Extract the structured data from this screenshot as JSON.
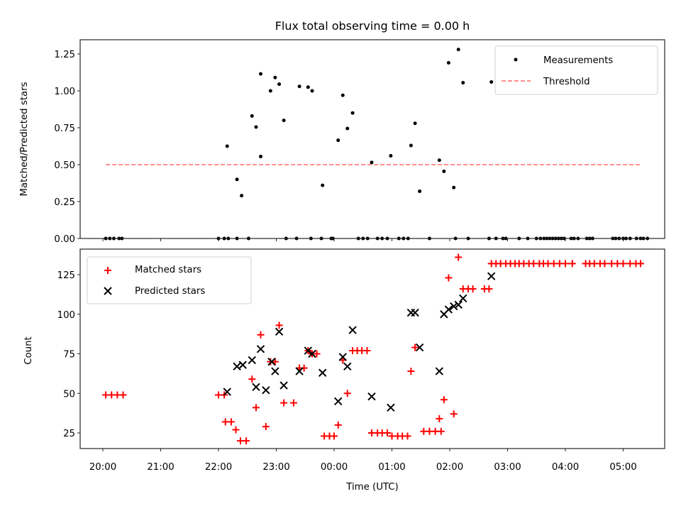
{
  "chart_data": [
    {
      "type": "scatter",
      "panel": "top",
      "title": "Flux total observing time = 0.00 h",
      "xlabel": "",
      "ylabel": "Matched/Predicted stars",
      "ylim": [
        0,
        1.35
      ],
      "yticks": [
        0,
        0.25,
        0.5,
        0.75,
        1.0,
        1.25
      ],
      "ytick_labels": [
        "0.00",
        "0.25",
        "0.50",
        "0.75",
        "1.00",
        "1.25"
      ],
      "xlim_hours_from_2000": [
        -0.4,
        9.7
      ],
      "xticks_hours_from_2000": [
        0,
        1,
        2,
        3,
        4,
        5,
        6,
        7,
        8,
        9
      ],
      "legend": {
        "placement": "upper-right",
        "entries": [
          "Measurements",
          "Threshold"
        ]
      },
      "series": [
        {
          "name": "Measurements",
          "marker": "dot",
          "color": "#000000",
          "x_hours_from_2000": [
            0.05,
            0.12,
            0.19,
            0.28,
            0.33,
            2.0,
            2.1,
            2.17,
            2.32,
            2.52,
            3.17,
            3.35,
            3.6,
            3.78,
            3.95,
            3.98,
            4.42,
            4.5,
            4.58,
            4.75,
            4.83,
            4.92,
            5.12,
            5.2,
            5.28,
            5.65,
            6.1,
            6.32,
            6.68,
            6.8,
            6.92,
            6.97,
            7.2,
            7.35,
            7.5,
            7.57,
            7.63,
            7.68,
            7.73,
            7.78,
            7.83,
            7.88,
            7.93,
            7.98,
            8.1,
            8.15,
            8.22,
            8.37,
            8.42,
            8.47,
            8.82,
            8.87,
            8.93,
            9.0,
            9.05,
            9.12,
            9.23,
            9.3,
            9.35,
            9.42,
            2.15,
            2.32,
            2.4,
            2.58,
            2.65,
            2.73,
            2.73,
            2.9,
            2.98,
            3.05,
            3.13,
            3.4,
            3.55,
            3.62,
            3.8,
            4.07,
            4.15,
            4.23,
            4.32,
            4.65,
            4.98,
            5.33,
            5.4,
            5.48,
            5.82,
            5.9,
            5.98,
            6.07,
            6.15,
            6.23,
            6.72
          ],
          "y": [
            0,
            0,
            0,
            0,
            0,
            0,
            0,
            0,
            0,
            0,
            0,
            0,
            0,
            0,
            0,
            0,
            0,
            0,
            0,
            0,
            0,
            0,
            0,
            0,
            0,
            0,
            0,
            0,
            0,
            0,
            0,
            0,
            0,
            0,
            0,
            0,
            0,
            0,
            0,
            0,
            0,
            0,
            0,
            0,
            0,
            0,
            0,
            0,
            0,
            0,
            0,
            0,
            0,
            0,
            0,
            0,
            0,
            0,
            0,
            0,
            0.625,
            0.4,
            0.29,
            0.83,
            0.755,
            0.555,
            1.115,
            1.0,
            1.09,
            1.045,
            0.8,
            1.03,
            1.025,
            1.0,
            0.36,
            0.665,
            0.97,
            0.745,
            0.85,
            0.515,
            0.56,
            0.63,
            0.78,
            0.32,
            0.53,
            0.455,
            1.19,
            0.345,
            1.28,
            1.055,
            1.06
          ]
        },
        {
          "name": "Threshold",
          "style": "dashed",
          "color": "#ff8080",
          "x_hours_from_2000": [
            0.05,
            9.3
          ],
          "y": [
            0.5,
            0.5
          ]
        }
      ]
    },
    {
      "type": "scatter",
      "panel": "bottom",
      "xlabel": "Time (UTC)",
      "ylabel": "Count",
      "ylim": [
        15,
        140
      ],
      "yticks": [
        25,
        50,
        75,
        100,
        125
      ],
      "ytick_labels": [
        "25",
        "50",
        "75",
        "100",
        "125"
      ],
      "xlim_hours_from_2000": [
        -0.4,
        9.7
      ],
      "xticks_hours_from_2000": [
        0,
        1,
        2,
        3,
        4,
        5,
        6,
        7,
        8,
        9
      ],
      "xtick_labels": [
        "20:00",
        "21:00",
        "22:00",
        "23:00",
        "00:00",
        "01:00",
        "02:00",
        "03:00",
        "04:00",
        "05:00"
      ],
      "legend": {
        "placement": "upper-left",
        "entries": [
          "Matched stars",
          "Predicted stars"
        ]
      },
      "series": [
        {
          "name": "Matched stars",
          "marker": "+",
          "color": "#ff0000",
          "x_hours_from_2000": [
            0.05,
            0.15,
            0.25,
            0.35,
            2.0,
            2.1,
            2.12,
            2.22,
            2.3,
            2.38,
            2.48,
            2.58,
            2.65,
            2.73,
            2.82,
            2.9,
            2.98,
            3.05,
            3.13,
            3.3,
            3.4,
            3.48,
            3.55,
            3.62,
            3.7,
            3.83,
            3.92,
            4.0,
            4.07,
            4.15,
            4.23,
            4.32,
            4.4,
            4.48,
            4.57,
            4.65,
            4.75,
            4.83,
            4.92,
            5.0,
            5.1,
            5.18,
            5.27,
            5.33,
            5.4,
            5.55,
            5.65,
            5.75,
            5.85,
            5.82,
            5.9,
            5.98,
            6.07,
            6.15,
            6.23,
            6.32,
            6.4,
            6.6,
            6.68,
            6.72,
            6.8,
            6.88,
            6.97,
            7.05,
            7.13,
            7.2,
            7.28,
            7.37,
            7.45,
            7.55,
            7.62,
            7.7,
            7.8,
            7.9,
            8.0,
            8.12,
            8.35,
            8.42,
            8.5,
            8.6,
            8.68,
            8.8,
            8.9,
            9.0,
            9.12,
            9.22,
            9.3
          ],
          "y": [
            49,
            49,
            49,
            49,
            49,
            49,
            32,
            32,
            27,
            20,
            20,
            59,
            41,
            87,
            29,
            70,
            70,
            93,
            44,
            44,
            66,
            66,
            77,
            75,
            75,
            23,
            23,
            23,
            30,
            71,
            50,
            77,
            77,
            77,
            77,
            25,
            25,
            25,
            25,
            23,
            23,
            23,
            23,
            64,
            79,
            26,
            26,
            26,
            26,
            34,
            46,
            123,
            37,
            136,
            116,
            116,
            116,
            116,
            116,
            132,
            132,
            132,
            132,
            132,
            132,
            132,
            132,
            132,
            132,
            132,
            132,
            132,
            132,
            132,
            132,
            132,
            132,
            132,
            132,
            132,
            132,
            132,
            132,
            132,
            132,
            132,
            132
          ]
        },
        {
          "name": "Predicted stars",
          "marker": "x",
          "color": "#000000",
          "x_hours_from_2000": [
            2.15,
            2.32,
            2.42,
            2.58,
            2.65,
            2.73,
            2.82,
            2.92,
            2.98,
            3.05,
            3.13,
            3.4,
            3.55,
            3.62,
            3.8,
            4.07,
            4.15,
            4.23,
            4.32,
            4.65,
            4.98,
            5.33,
            5.4,
            5.48,
            5.82,
            5.9,
            5.98,
            6.07,
            6.15,
            6.23,
            6.72
          ],
          "y": [
            51,
            67,
            68,
            71,
            54,
            78,
            52,
            70,
            64,
            89,
            55,
            64,
            77,
            75,
            63,
            45,
            73,
            67,
            90,
            48,
            41,
            101,
            101,
            79,
            64,
            100,
            103,
            105,
            106,
            110,
            124
          ]
        }
      ]
    }
  ]
}
